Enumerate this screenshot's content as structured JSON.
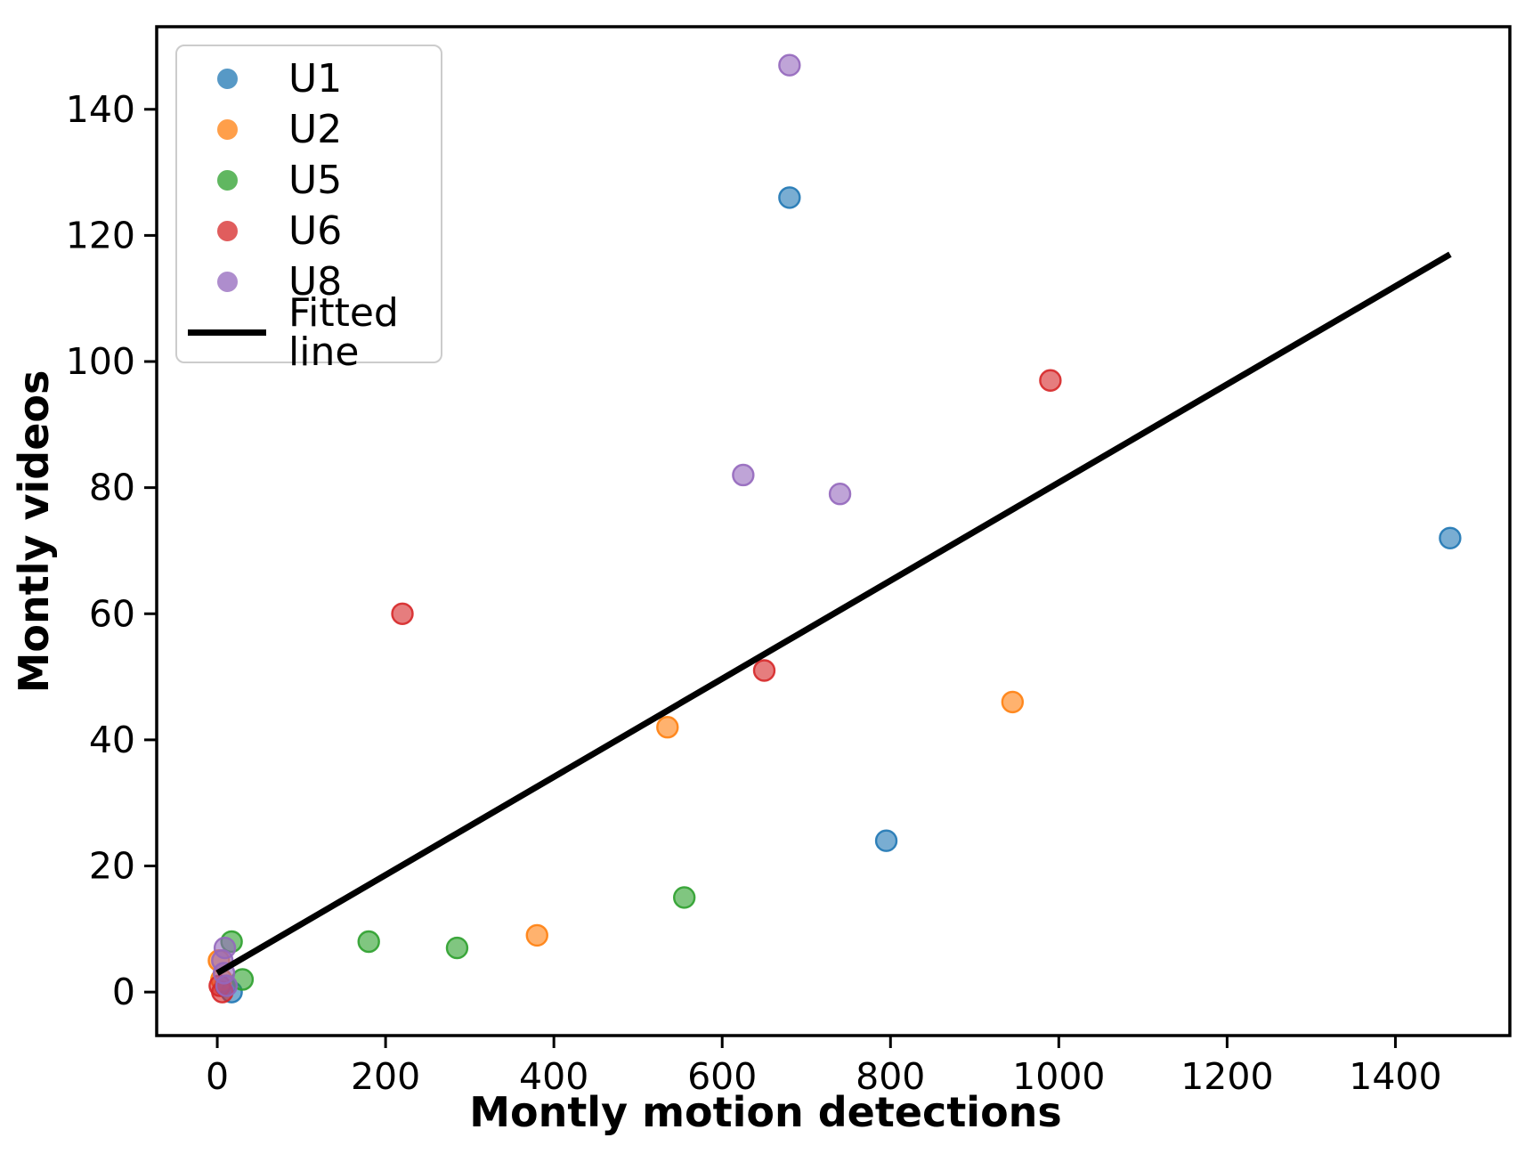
{
  "figure": {
    "background": "#ffffff"
  },
  "chart_data": {
    "type": "scatter",
    "title": "",
    "xlabel": "Montly motion detections",
    "ylabel": "Montly videos",
    "xlim": [
      -72,
      1536
    ],
    "ylim": [
      -6.9,
      153.1
    ],
    "xticks": [
      0,
      200,
      400,
      600,
      800,
      1000,
      1200,
      1400
    ],
    "yticks": [
      0,
      20,
      40,
      60,
      80,
      100,
      120,
      140
    ],
    "grid": false,
    "legend_position": "upper-left",
    "axis_color": "#000000",
    "series": [
      {
        "name": "U1",
        "color": "#1f77b4",
        "points": [
          [
            10,
            1
          ],
          [
            17,
            0
          ],
          [
            680,
            126
          ],
          [
            795,
            24
          ],
          [
            1465,
            72
          ]
        ]
      },
      {
        "name": "U2",
        "color": "#ff7f0e",
        "points": [
          [
            2,
            5
          ],
          [
            5,
            2
          ],
          [
            380,
            9
          ],
          [
            535,
            42
          ],
          [
            945,
            46
          ]
        ]
      },
      {
        "name": "U5",
        "color": "#2ca02c",
        "points": [
          [
            17,
            8
          ],
          [
            30,
            2
          ],
          [
            180,
            8
          ],
          [
            285,
            7
          ],
          [
            555,
            15
          ]
        ]
      },
      {
        "name": "U6",
        "color": "#d62728",
        "points": [
          [
            3,
            1
          ],
          [
            6,
            0
          ],
          [
            220,
            60
          ],
          [
            650,
            51
          ],
          [
            990,
            97
          ]
        ]
      },
      {
        "name": "U8",
        "color": "#9467bd",
        "points": [
          [
            9,
            7
          ],
          [
            6,
            5
          ],
          [
            8,
            3
          ],
          [
            11,
            1
          ],
          [
            625,
            82
          ],
          [
            680,
            147
          ],
          [
            740,
            79
          ]
        ]
      }
    ],
    "fitted_line": {
      "name": "Fitted line",
      "color": "#000000",
      "x": [
        0,
        1465
      ],
      "y": [
        3,
        117
      ]
    }
  }
}
